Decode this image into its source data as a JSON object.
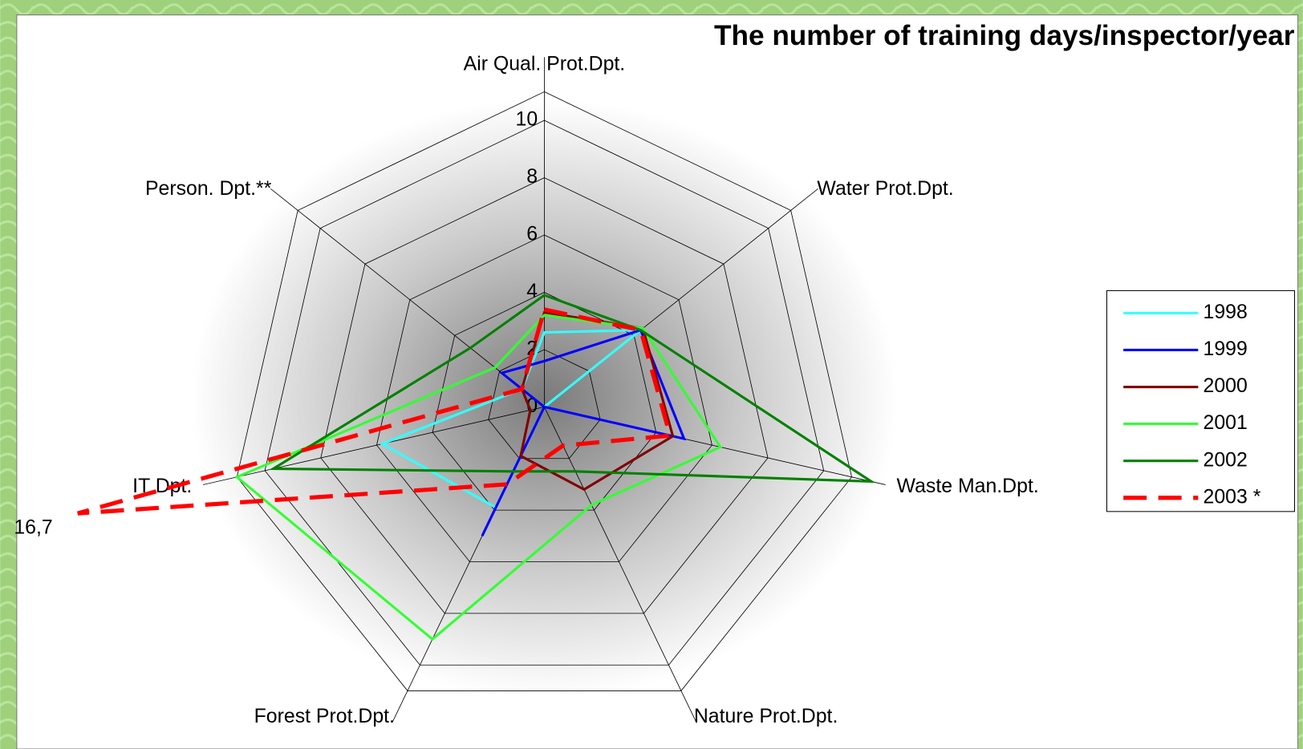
{
  "chart_data": {
    "type": "radar",
    "title": "The number of training days/inspector/year",
    "categories": [
      "Air Qual. Prot.Dpt.",
      "Water Prot.Dpt.",
      "Waste Man.Dpt.",
      "Nature Prot.Dpt.",
      "Forest Prot.Dpt.",
      "IT Dpt.",
      "Person. Dpt.**"
    ],
    "series": [
      {
        "name": "1998",
        "color": "#33ffff",
        "values": [
          2.6,
          4.3,
          0,
          0,
          3.9,
          5.8,
          1
        ]
      },
      {
        "name": "1999",
        "color": "#0000ff",
        "values": [
          1.6,
          4.3,
          5.0,
          0,
          5.0,
          0,
          1.9
        ]
      },
      {
        "name": "2000",
        "color": "#800000",
        "values": [
          3.3,
          4.4,
          4.6,
          3.2,
          1.9,
          0.5,
          1
        ]
      },
      {
        "name": "2001",
        "color": "#33ff33",
        "values": [
          3.2,
          4.4,
          6.3,
          3.8,
          9.0,
          11.0,
          2.2
        ]
      },
      {
        "name": "2002",
        "color": "#008000",
        "values": [
          3.9,
          4.3,
          11.7,
          2.5,
          2.5,
          9.7,
          3.3
        ]
      },
      {
        "name": "2003 *",
        "color": "#ff0000",
        "dashed": true,
        "values": [
          3.4,
          4.3,
          4.5,
          1.5,
          3.0,
          16.7,
          1
        ],
        "value_labels": [
          null,
          null,
          null,
          null,
          null,
          "16,7",
          null
        ]
      }
    ],
    "ylim": [
      0,
      11
    ],
    "yticks": [
      0,
      2,
      4,
      6,
      8,
      10
    ],
    "legend": "right"
  }
}
